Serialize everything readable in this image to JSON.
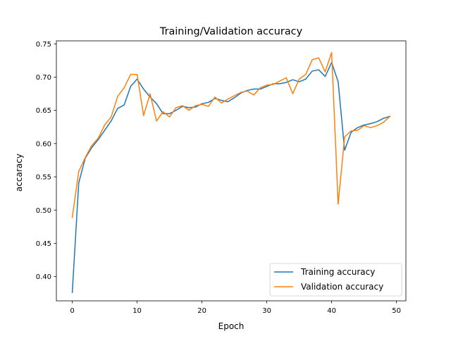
{
  "chart_data": {
    "type": "line",
    "title": "Training/Validation accuracy",
    "xlabel": "Epoch",
    "ylabel": "accaracy",
    "xlim": [
      -2.45,
      51.45
    ],
    "ylim": [
      0.3635,
      0.7545
    ],
    "xticks": [
      0,
      10,
      20,
      30,
      40,
      50
    ],
    "yticks": [
      0.4,
      0.45,
      0.5,
      0.55,
      0.6,
      0.65,
      0.7,
      0.75
    ],
    "grid": false,
    "legend_position": "bottom-right",
    "x": [
      0,
      1,
      2,
      3,
      4,
      5,
      6,
      7,
      8,
      9,
      10,
      11,
      12,
      13,
      14,
      15,
      16,
      17,
      18,
      19,
      20,
      21,
      22,
      23,
      24,
      25,
      26,
      27,
      28,
      29,
      30,
      31,
      32,
      33,
      34,
      35,
      36,
      37,
      38,
      39,
      40,
      41,
      42,
      43,
      44,
      45,
      46,
      47,
      48,
      49
    ],
    "series": [
      {
        "name": "Training accuracy",
        "color": "#1f77b4",
        "values": [
          0.376,
          0.541,
          0.578,
          0.594,
          0.606,
          0.62,
          0.634,
          0.653,
          0.658,
          0.686,
          0.697,
          0.682,
          0.67,
          0.66,
          0.645,
          0.645,
          0.65,
          0.656,
          0.654,
          0.655,
          0.66,
          0.662,
          0.668,
          0.665,
          0.663,
          0.669,
          0.676,
          0.68,
          0.682,
          0.682,
          0.686,
          0.69,
          0.69,
          0.692,
          0.696,
          0.693,
          0.697,
          0.709,
          0.711,
          0.701,
          0.722,
          0.693,
          0.59,
          0.617,
          0.624,
          0.628,
          0.63,
          0.633,
          0.638,
          0.641
        ]
      },
      {
        "name": "Validation accuracy",
        "color": "#ff7f0e",
        "values": [
          0.489,
          0.558,
          0.579,
          0.597,
          0.608,
          0.628,
          0.64,
          0.671,
          0.684,
          0.704,
          0.704,
          0.642,
          0.675,
          0.634,
          0.648,
          0.64,
          0.654,
          0.657,
          0.65,
          0.657,
          0.659,
          0.656,
          0.67,
          0.661,
          0.667,
          0.672,
          0.677,
          0.679,
          0.673,
          0.684,
          0.688,
          0.689,
          0.694,
          0.699,
          0.675,
          0.697,
          0.704,
          0.726,
          0.729,
          0.708,
          0.737,
          0.509,
          0.61,
          0.619,
          0.62,
          0.627,
          0.624,
          0.627,
          0.632,
          0.641
        ]
      }
    ]
  }
}
